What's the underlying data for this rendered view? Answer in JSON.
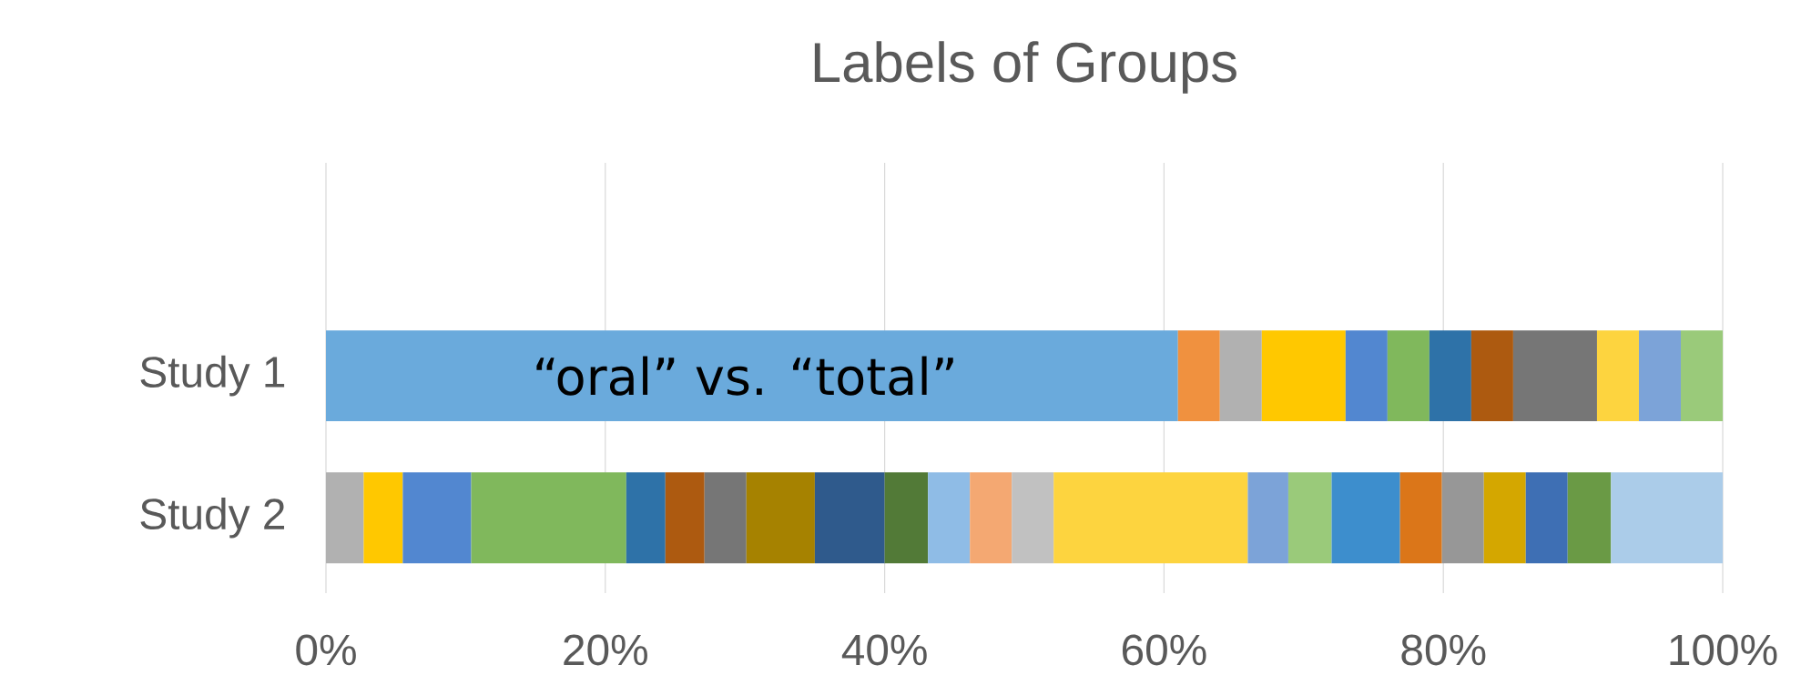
{
  "chart_data": {
    "type": "bar",
    "orientation": "horizontal",
    "stacked": true,
    "title": "Labels of Groups",
    "categories": [
      "Study 1",
      "Study 2"
    ],
    "series": [
      {
        "color": "#6aaadc",
        "values": [
          61,
          null
        ]
      },
      {
        "color": "#f0913f",
        "values": [
          3,
          null
        ]
      },
      {
        "color": "#b1b1b1",
        "values": [
          3,
          null
        ]
      },
      {
        "color": "#ffc800",
        "values": [
          6,
          null
        ]
      },
      {
        "color": "#5287d0",
        "values": [
          3,
          null
        ]
      },
      {
        "color": "#80b85c",
        "values": [
          3,
          null
        ]
      },
      {
        "color": "#2e72a8",
        "values": [
          3,
          null
        ]
      },
      {
        "color": "#ad5a10",
        "values": [
          3,
          null
        ]
      },
      {
        "color": "#767676",
        "values": [
          6,
          null
        ]
      },
      {
        "color": "#fdd43f",
        "values": [
          3,
          null
        ]
      },
      {
        "color": "#7ca3d8",
        "values": [
          3,
          null
        ]
      },
      {
        "color": "#9aca7a",
        "values": [
          3,
          null
        ]
      },
      {
        "color": "#b1b1b1",
        "values": [
          null,
          2.7
        ]
      },
      {
        "color": "#ffc800",
        "values": [
          null,
          2.8
        ]
      },
      {
        "color": "#5287d0",
        "values": [
          null,
          4.9
        ]
      },
      {
        "color": "#80b85c",
        "values": [
          null,
          11.1
        ]
      },
      {
        "color": "#2e72a8",
        "values": [
          null,
          2.8
        ]
      },
      {
        "color": "#ad5a10",
        "values": [
          null,
          2.8
        ]
      },
      {
        "color": "#767676",
        "values": [
          null,
          3
        ]
      },
      {
        "color": "#a68200",
        "values": [
          null,
          4.9
        ]
      },
      {
        "color": "#2f5a8c",
        "values": [
          null,
          5
        ]
      },
      {
        "color": "#527a37",
        "values": [
          null,
          3.1
        ]
      },
      {
        "color": "#8fbce6",
        "values": [
          null,
          3
        ]
      },
      {
        "color": "#f4a872",
        "values": [
          null,
          3
        ]
      },
      {
        "color": "#c1c1c1",
        "values": [
          null,
          3
        ]
      },
      {
        "color": "#fdd43f",
        "values": [
          null,
          13.9
        ]
      },
      {
        "color": "#7ca3d8",
        "values": [
          null,
          2.9
        ]
      },
      {
        "color": "#9aca7a",
        "values": [
          null,
          3.1
        ]
      },
      {
        "color": "#3d8ecd",
        "values": [
          null,
          4.9
        ]
      },
      {
        "color": "#db7619",
        "values": [
          null,
          3
        ]
      },
      {
        "color": "#979797",
        "values": [
          null,
          3
        ]
      },
      {
        "color": "#d4a700",
        "values": [
          null,
          3
        ]
      },
      {
        "color": "#3e6fb4",
        "values": [
          null,
          3
        ]
      },
      {
        "color": "#6a9a45",
        "values": [
          null,
          3.1
        ]
      },
      {
        "color": "#abcce9",
        "values": [
          null,
          8
        ]
      }
    ],
    "xlim": [
      0,
      100
    ],
    "xticks": [
      {
        "value": 0,
        "label": "0%"
      },
      {
        "value": 20,
        "label": "20%"
      },
      {
        "value": 40,
        "label": "40%"
      },
      {
        "value": 60,
        "label": "60%"
      },
      {
        "value": 80,
        "label": "80%"
      },
      {
        "value": 100,
        "label": "100%"
      }
    ],
    "grid": "x",
    "annotations": [
      "“oral” vs. “total”"
    ]
  }
}
